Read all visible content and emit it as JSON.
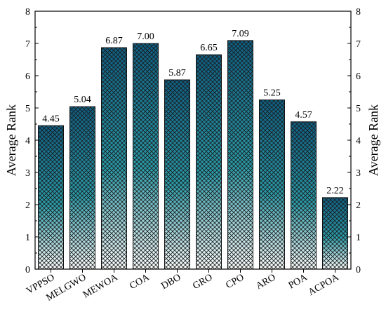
{
  "chart_data": {
    "type": "bar",
    "categories": [
      "VPPSO",
      "MELGWO",
      "MEWOA",
      "COA",
      "DBO",
      "GRO",
      "CPO",
      "ARO",
      "POA",
      "ACPOA"
    ],
    "values": [
      4.45,
      5.04,
      6.87,
      7.0,
      5.87,
      6.65,
      7.09,
      5.25,
      4.57,
      2.22
    ],
    "value_labels": [
      "4.45",
      "5.04",
      "6.87",
      "7.00",
      "5.87",
      "6.65",
      "7.09",
      "5.25",
      "4.57",
      "2.22"
    ],
    "title": "",
    "xlabel": "",
    "ylabel": "Average Rank",
    "ylabel_right": "Average Rank",
    "ylim": [
      0,
      8
    ],
    "yticks": [
      "0",
      "1",
      "2",
      "3",
      "4",
      "5",
      "6",
      "7",
      "8"
    ],
    "grid": false,
    "legend": "none",
    "colors": {
      "bar_top": "#0f5e82",
      "bar_mid": "#2a9aa8",
      "bar_bottom": "#ffffff",
      "bar_outline": "#111111",
      "axis": "#000000"
    }
  }
}
